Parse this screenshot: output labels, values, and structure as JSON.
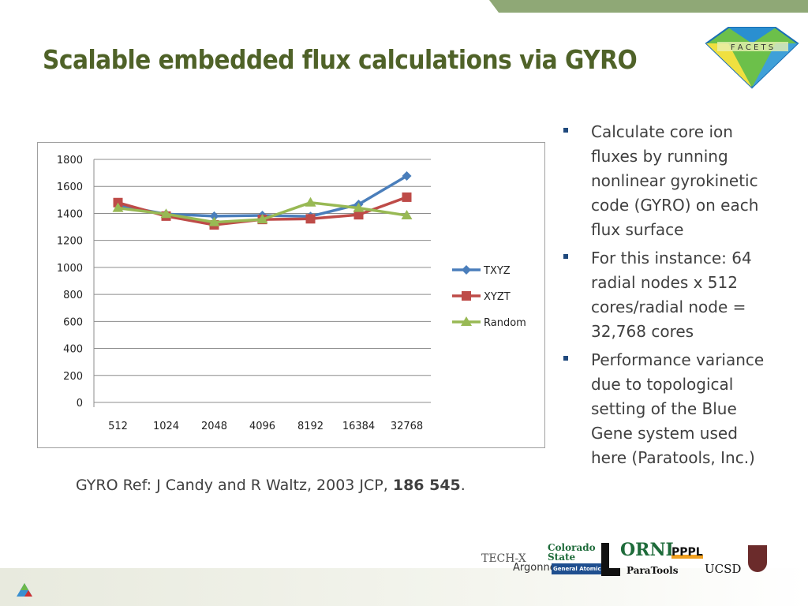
{
  "title": "Scalable embedded flux calculations via GYRO",
  "logo_text": "F A C E T S",
  "bullets": [
    "Calculate core ion fluxes by running nonlinear gyrokinetic code (GYRO) on each flux surface",
    "For this instance: 64 radial nodes x 512 cores/radial node = 32,768 cores",
    "Performance variance due to topological setting of the Blue Gene system used here (Paratools, Inc.)"
  ],
  "reference": {
    "prefix": "GYRO Ref:  J Candy and R Waltz, 2003 JCP, ",
    "bold": "186 545",
    "suffix": "."
  },
  "partner_logos": [
    "TECH-X",
    "Argonne",
    "Colorado State",
    "General Atomics",
    "ORNL",
    "ParaTools",
    "PPPL",
    "UCSD"
  ],
  "chart_data": {
    "type": "line",
    "categories": [
      "512",
      "1024",
      "2048",
      "4096",
      "8192",
      "16384",
      "32768"
    ],
    "ylim": [
      0,
      1800
    ],
    "yticks": [
      0,
      200,
      400,
      600,
      800,
      1000,
      1200,
      1400,
      1600,
      1800
    ],
    "grid": true,
    "legend": "right",
    "series": [
      {
        "name": "TXYZ",
        "color": "#4a7ebb",
        "marker": "diamond",
        "values": [
          1460,
          1395,
          1380,
          1385,
          1378,
          1467,
          1677
        ]
      },
      {
        "name": "XYZT",
        "color": "#be4b48",
        "marker": "square",
        "values": [
          1480,
          1380,
          1315,
          1355,
          1360,
          1390,
          1520
        ]
      },
      {
        "name": "Random",
        "color": "#98b954",
        "marker": "triangle",
        "values": [
          1440,
          1395,
          1335,
          1355,
          1480,
          1440,
          1385
        ]
      }
    ]
  }
}
